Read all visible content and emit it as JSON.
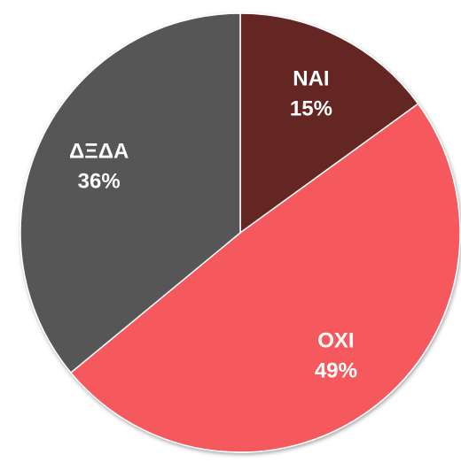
{
  "chart_data": {
    "type": "pie",
    "categories": [
      "NAI",
      "OXI",
      "ΔΞΔΑ"
    ],
    "values": [
      15,
      49,
      36
    ],
    "value_labels": [
      "15%",
      "49%",
      "36%"
    ],
    "colors": [
      "#632523",
      "#f5585d",
      "#565656"
    ]
  }
}
